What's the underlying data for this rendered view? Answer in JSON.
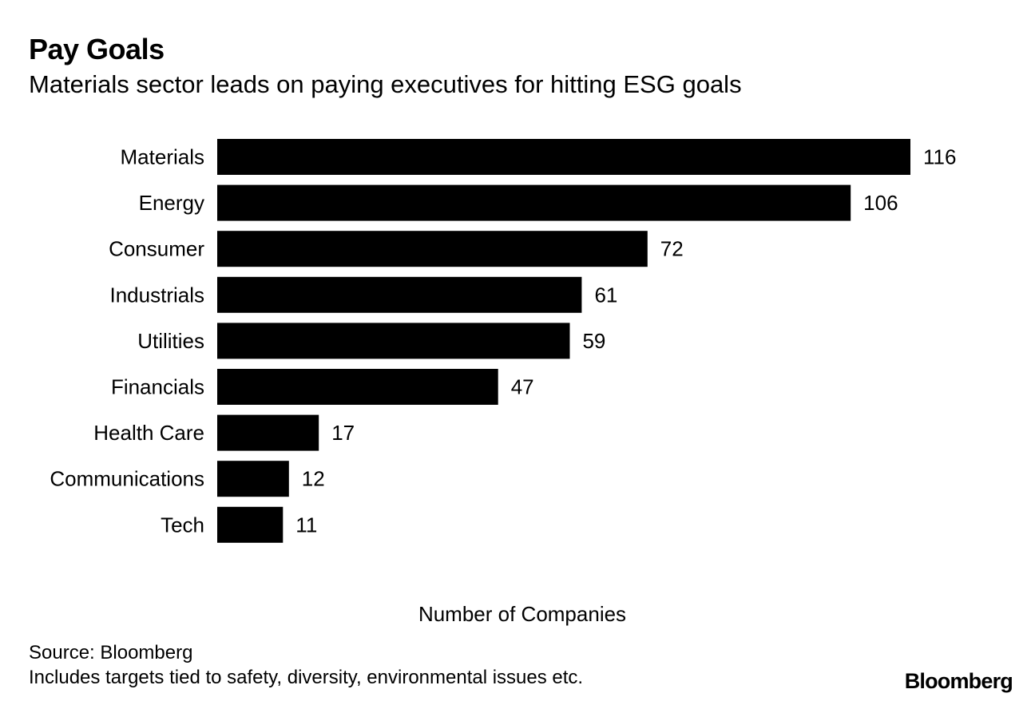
{
  "chart_data": {
    "type": "bar",
    "orientation": "horizontal",
    "title": "Pay Goals",
    "subtitle": "Materials sector leads on paying executives for hitting ESG goals",
    "categories": [
      "Materials",
      "Energy",
      "Consumer",
      "Industrials",
      "Utilities",
      "Financials",
      "Health Care",
      "Communications",
      "Tech"
    ],
    "values": [
      116,
      106,
      72,
      61,
      59,
      47,
      17,
      12,
      11
    ],
    "xlabel": "Number of Companies",
    "ylabel": "",
    "xlim": [
      0,
      116
    ],
    "grid": false,
    "data_labels": true,
    "bar_color": "#000000"
  },
  "footer": {
    "source": "Source: Bloomberg",
    "note": "Includes targets tied to safety, diversity, environmental issues etc.",
    "brand": "Bloomberg"
  }
}
